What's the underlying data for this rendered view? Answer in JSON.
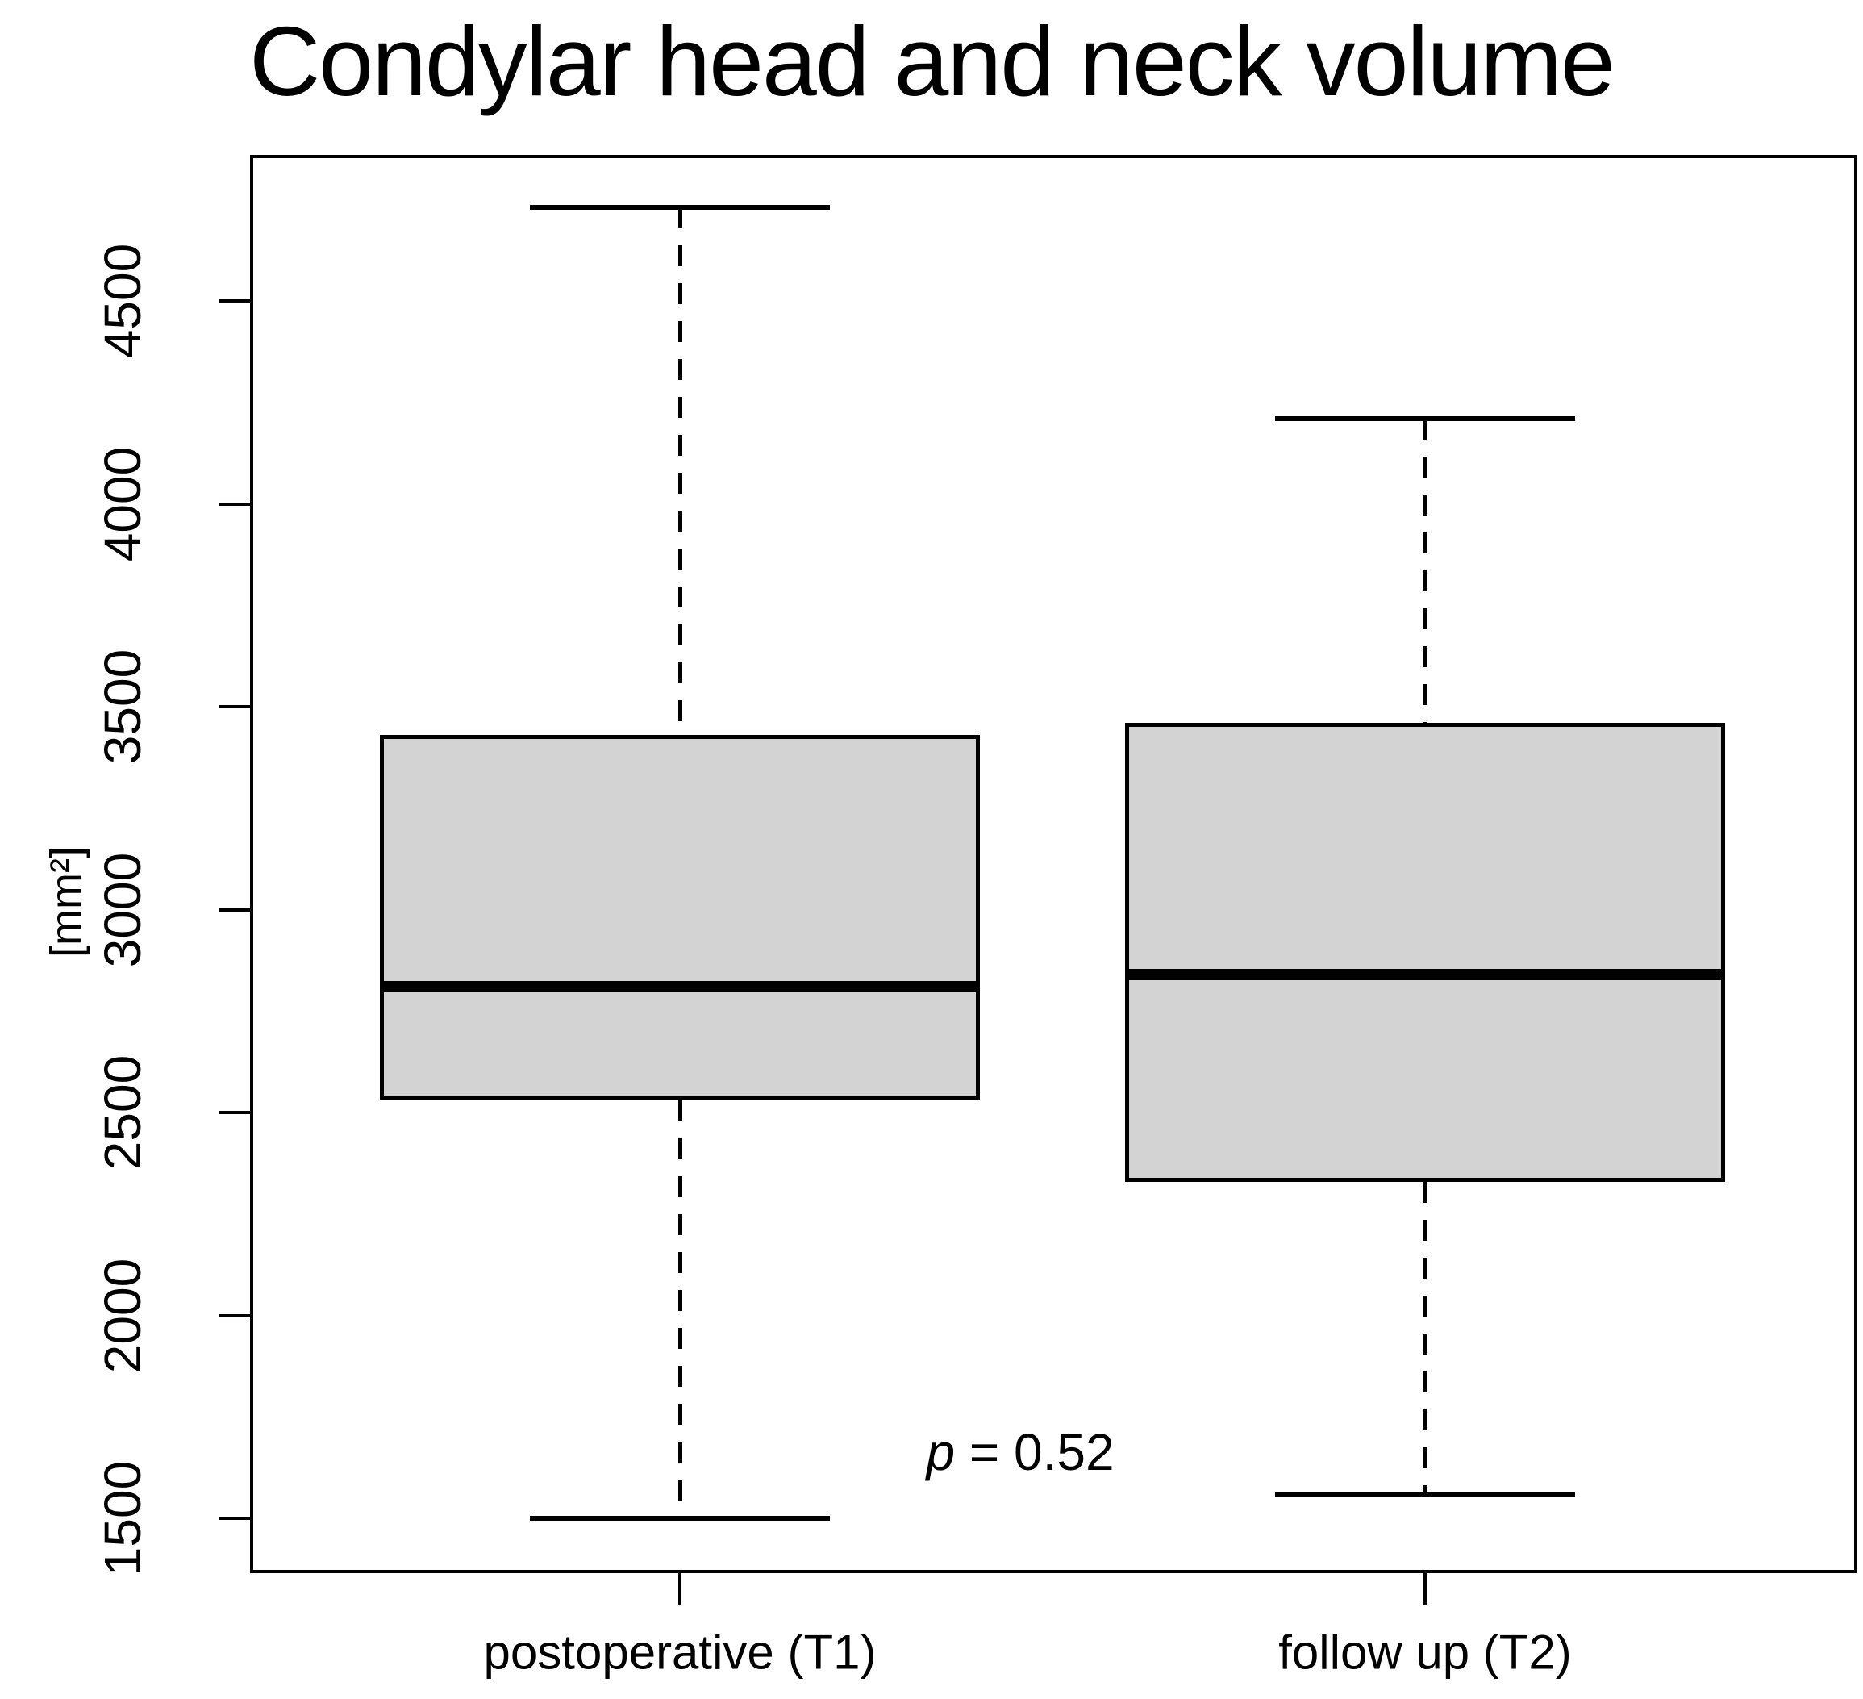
{
  "chart_data": {
    "type": "boxplot",
    "title": "Condylar head and neck volume",
    "ylabel": "[mm²]",
    "xlabel": "",
    "y_ticks": [
      "1500",
      "2000",
      "2500",
      "3000",
      "3500",
      "4000",
      "4500"
    ],
    "y_tick_values": [
      1500,
      2000,
      2500,
      3000,
      3500,
      4000,
      4500
    ],
    "ylim": [
      1365,
      4860
    ],
    "grid": false,
    "categories": [
      "postoperative (T1)",
      "follow up (T2)"
    ],
    "series": [
      {
        "name": "postoperative (T1)",
        "whisker_low": 1500,
        "q1": 2530,
        "median": 2810,
        "q3": 3430,
        "whisker_high": 4730
      },
      {
        "name": "follow up (T2)",
        "whisker_low": 1560,
        "q1": 2330,
        "median": 2840,
        "q3": 3460,
        "whisker_high": 4210
      }
    ],
    "annotation": {
      "p_symbol": "p",
      "p_text": "= 0.52"
    },
    "colors": {
      "box_fill": "#d3d3d3",
      "line": "#000000",
      "background": "#ffffff"
    }
  }
}
